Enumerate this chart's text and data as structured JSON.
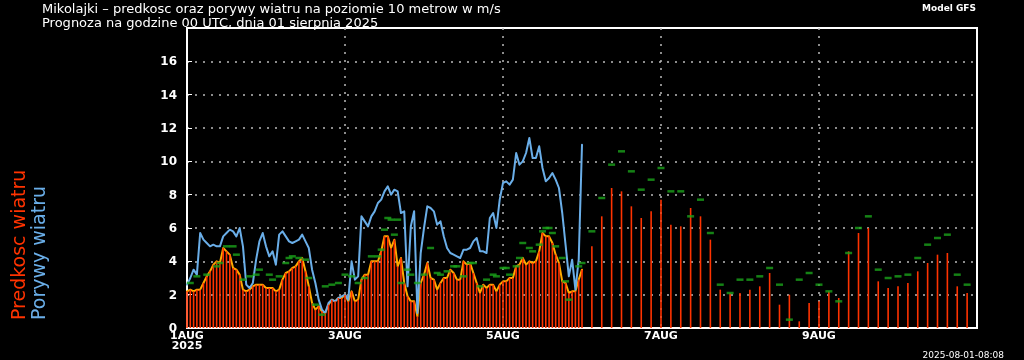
{
  "chart_data": {
    "type": "bar",
    "title": "Mikolajki – predkosc oraz porywy wiatru na poziomie 10 metrow w m/s",
    "subtitle": "Prognoza na godzine 00 UTC, dnia 01 sierpnia 2025",
    "annotations": [
      "Model GFS",
      "2025-08-01-08:08"
    ],
    "x": [
      "2025-08-01T00:00",
      "2025-08-01T01:00",
      "2025-08-01T02:00",
      "2025-08-01T03:00",
      "2025-08-01T04:00",
      "2025-08-01T05:00",
      "2025-08-01T06:00",
      "2025-08-01T07:00",
      "2025-08-01T08:00",
      "2025-08-01T09:00",
      "2025-08-01T10:00",
      "2025-08-01T11:00",
      "2025-08-01T12:00",
      "2025-08-01T13:00",
      "2025-08-01T14:00",
      "2025-08-01T15:00",
      "2025-08-01T16:00",
      "2025-08-01T17:00",
      "2025-08-01T18:00",
      "2025-08-01T19:00",
      "2025-08-01T20:00",
      "2025-08-01T21:00",
      "2025-08-01T22:00",
      "2025-08-01T23:00",
      "2025-08-02T00:00",
      "2025-08-02T01:00",
      "2025-08-02T02:00",
      "2025-08-02T03:00",
      "2025-08-02T04:00",
      "2025-08-02T05:00",
      "2025-08-02T06:00",
      "2025-08-02T07:00",
      "2025-08-02T08:00",
      "2025-08-02T09:00",
      "2025-08-02T10:00",
      "2025-08-02T11:00",
      "2025-08-02T12:00",
      "2025-08-02T13:00",
      "2025-08-02T14:00",
      "2025-08-02T15:00",
      "2025-08-02T16:00",
      "2025-08-02T17:00",
      "2025-08-02T18:00",
      "2025-08-02T19:00",
      "2025-08-02T20:00",
      "2025-08-02T21:00",
      "2025-08-02T22:00",
      "2025-08-02T23:00",
      "2025-08-03T00:00",
      "2025-08-03T01:00",
      "2025-08-03T02:00",
      "2025-08-03T03:00",
      "2025-08-03T04:00",
      "2025-08-03T05:00",
      "2025-08-03T06:00",
      "2025-08-03T07:00",
      "2025-08-03T08:00",
      "2025-08-03T09:00",
      "2025-08-03T10:00",
      "2025-08-03T11:00",
      "2025-08-03T12:00",
      "2025-08-03T13:00",
      "2025-08-03T14:00",
      "2025-08-03T15:00",
      "2025-08-03T16:00",
      "2025-08-03T17:00",
      "2025-08-03T18:00",
      "2025-08-03T19:00",
      "2025-08-03T20:00",
      "2025-08-03T21:00",
      "2025-08-03T22:00",
      "2025-08-03T23:00",
      "2025-08-04T00:00",
      "2025-08-04T01:00",
      "2025-08-04T02:00",
      "2025-08-04T03:00",
      "2025-08-04T04:00",
      "2025-08-04T05:00",
      "2025-08-04T06:00",
      "2025-08-04T07:00",
      "2025-08-04T08:00",
      "2025-08-04T09:00",
      "2025-08-04T10:00",
      "2025-08-04T11:00",
      "2025-08-04T12:00",
      "2025-08-04T13:00",
      "2025-08-04T14:00",
      "2025-08-04T15:00",
      "2025-08-04T16:00",
      "2025-08-04T17:00",
      "2025-08-04T18:00",
      "2025-08-04T19:00",
      "2025-08-04T20:00",
      "2025-08-04T21:00",
      "2025-08-04T22:00",
      "2025-08-04T23:00",
      "2025-08-05T00:00",
      "2025-08-05T01:00",
      "2025-08-05T02:00",
      "2025-08-05T03:00",
      "2025-08-05T04:00",
      "2025-08-05T05:00",
      "2025-08-05T06:00",
      "2025-08-05T07:00",
      "2025-08-05T08:00",
      "2025-08-05T09:00",
      "2025-08-05T10:00",
      "2025-08-05T11:00",
      "2025-08-05T12:00",
      "2025-08-05T13:00",
      "2025-08-05T14:00",
      "2025-08-05T15:00",
      "2025-08-05T16:00",
      "2025-08-05T17:00",
      "2025-08-05T18:00",
      "2025-08-05T19:00",
      "2025-08-05T20:00",
      "2025-08-05T21:00",
      "2025-08-05T22:00",
      "2025-08-05T23:00",
      "2025-08-06T00:00",
      "2025-08-06T03:00",
      "2025-08-06T06:00",
      "2025-08-06T09:00",
      "2025-08-06T12:00",
      "2025-08-06T15:00",
      "2025-08-06T18:00",
      "2025-08-06T21:00",
      "2025-08-07T00:00",
      "2025-08-07T03:00",
      "2025-08-07T06:00",
      "2025-08-07T09:00",
      "2025-08-07T12:00",
      "2025-08-07T15:00",
      "2025-08-07T18:00",
      "2025-08-07T21:00",
      "2025-08-08T00:00",
      "2025-08-08T03:00",
      "2025-08-08T06:00",
      "2025-08-08T09:00",
      "2025-08-08T12:00",
      "2025-08-08T15:00",
      "2025-08-08T18:00",
      "2025-08-08T21:00",
      "2025-08-09T00:00",
      "2025-08-09T03:00",
      "2025-08-09T06:00",
      "2025-08-09T09:00",
      "2025-08-09T12:00",
      "2025-08-09T15:00",
      "2025-08-09T18:00",
      "2025-08-09T21:00",
      "2025-08-10T00:00",
      "2025-08-10T03:00",
      "2025-08-10T06:00",
      "2025-08-10T09:00",
      "2025-08-10T12:00",
      "2025-08-10T15:00",
      "2025-08-10T18:00",
      "2025-08-10T21:00"
    ],
    "xlim": [
      "2025-08-01T00:00",
      "2025-08-11T00:00"
    ],
    "xticks": [
      {
        "value": "2025-08-01T00:00",
        "label": "1AUG\n2025"
      },
      {
        "value": "2025-08-03T00:00",
        "label": "3AUG"
      },
      {
        "value": "2025-08-05T00:00",
        "label": "5AUG"
      },
      {
        "value": "2025-08-07T00:00",
        "label": "7AUG"
      },
      {
        "value": "2025-08-09T00:00",
        "label": "9AUG"
      }
    ],
    "ylim": [
      0,
      18
    ],
    "yticks": [
      0,
      2,
      4,
      6,
      8,
      10,
      12,
      14,
      16
    ],
    "grid": true,
    "legend": "left",
    "series": [
      {
        "name": "Predkosc wiatru",
        "color": "#ff3300",
        "values": [
          2.2,
          2.3,
          2.2,
          2.3,
          2.3,
          2.7,
          3.1,
          3.4,
          3.8,
          4.0,
          3.9,
          4.8,
          4.6,
          4.4,
          3.6,
          3.5,
          3.2,
          2.3,
          2.2,
          2.3,
          2.5,
          2.6,
          2.6,
          2.6,
          2.4,
          2.4,
          2.4,
          2.2,
          2.3,
          2.9,
          3.3,
          3.4,
          3.6,
          3.7,
          4.0,
          4.2,
          3.4,
          2.5,
          1.5,
          1.1,
          1.3,
          1.0,
          0.9,
          1.4,
          1.7,
          1.6,
          1.8,
          1.8,
          2.0,
          1.6,
          2.2,
          1.6,
          1.7,
          2.9,
          3.2,
          3.2,
          4.0,
          4.0,
          4.0,
          4.6,
          5.5,
          5.5,
          4.8,
          5.3,
          3.7,
          4.2,
          2.7,
          1.9,
          1.6,
          1.6,
          0.7,
          2.7,
          3.2,
          3.9,
          3.0,
          2.9,
          2.3,
          2.7,
          3.0,
          3.0,
          3.5,
          3.3,
          2.9,
          2.9,
          4.0,
          3.8,
          3.9,
          3.3,
          2.7,
          2.1,
          2.6,
          2.4,
          2.6,
          2.6,
          2.2,
          2.6,
          2.8,
          2.8,
          3.0,
          3.0,
          3.7,
          3.8,
          4.2,
          3.8,
          4.0,
          3.9,
          4.0,
          4.6,
          5.7,
          5.5,
          5.5,
          5.1,
          4.4,
          3.9,
          2.8,
          2.7,
          2.1,
          2.2,
          2.2,
          2.9,
          3.5,
          4.9,
          6.7,
          8.4,
          8.2,
          7.3,
          6.6,
          7.0,
          7.7,
          6.2,
          6.1,
          7.2,
          6.7,
          5.3,
          2.3,
          2.1,
          2.1,
          2.3,
          2.5,
          3.3,
          1.4,
          2.0,
          0.4,
          1.5,
          1.6,
          2.2,
          1.8,
          4.6,
          5.7,
          6.0,
          2.8,
          2.4,
          2.5,
          2.7,
          3.4,
          3.9,
          4.4,
          4.5,
          2.5,
          2.1
        ]
      },
      {
        "type": "line",
        "color": "#ffaa00",
        "marker": "none",
        "values": [
          2.2,
          2.3,
          2.2,
          2.3,
          2.3,
          2.7,
          3.1,
          3.4,
          3.8,
          4.0,
          3.9,
          4.8,
          4.6,
          4.4,
          3.6,
          3.5,
          3.2,
          2.3,
          2.2,
          2.3,
          2.5,
          2.6,
          2.6,
          2.6,
          2.4,
          2.4,
          2.4,
          2.2,
          2.3,
          2.9,
          3.3,
          3.4,
          3.6,
          3.7,
          4.0,
          4.2,
          3.4,
          2.5,
          1.5,
          1.1,
          1.3,
          1.0,
          0.9,
          1.4,
          1.7,
          1.6,
          1.8,
          1.8,
          2.0,
          1.6,
          2.2,
          1.6,
          1.7,
          2.9,
          3.2,
          3.2,
          4.0,
          4.0,
          4.0,
          4.6,
          5.5,
          5.5,
          4.8,
          5.3,
          3.7,
          4.2,
          2.7,
          1.9,
          1.6,
          1.6,
          0.7,
          2.7,
          3.2,
          3.9,
          3.0,
          2.9,
          2.3,
          2.7,
          3.0,
          3.0,
          3.5,
          3.3,
          2.9,
          2.9,
          4.0,
          3.8,
          3.9,
          3.3,
          2.7,
          2.1,
          2.6,
          2.4,
          2.6,
          2.6,
          2.2,
          2.6,
          2.8,
          2.8,
          3.0,
          3.0,
          3.7,
          3.8,
          4.2,
          3.8,
          4.0,
          3.9,
          4.0,
          4.6,
          5.7,
          5.5,
          5.5,
          5.1,
          4.4,
          3.9,
          2.8,
          2.7,
          2.1,
          2.2,
          2.2,
          2.9,
          3.5,
          null,
          null,
          null,
          null,
          null,
          null,
          null,
          null,
          null,
          null,
          null,
          null,
          null,
          null,
          null,
          null,
          null,
          null,
          null,
          null,
          null,
          null,
          null,
          null,
          null,
          null,
          null,
          null,
          null,
          null,
          null,
          null,
          null,
          null,
          null,
          null,
          null,
          null,
          null
        ]
      },
      {
        "name": "Porywy wiatru",
        "type": "line",
        "color": "#6aaee8",
        "marker": "none",
        "values": [
          2.6,
          3.0,
          3.5,
          3.2,
          5.7,
          5.3,
          5.1,
          4.9,
          5.0,
          4.9,
          4.9,
          5.5,
          5.7,
          5.9,
          5.8,
          5.5,
          6.0,
          4.9,
          2.6,
          2.4,
          2.7,
          4.1,
          5.2,
          5.7,
          4.9,
          4.3,
          4.6,
          3.8,
          5.6,
          5.8,
          5.5,
          5.2,
          5.1,
          5.2,
          5.3,
          5.6,
          5.2,
          4.8,
          3.5,
          2.7,
          1.7,
          1.1,
          0.9,
          1.5,
          1.7,
          1.6,
          1.8,
          1.9,
          2.0,
          1.7,
          4.0,
          2.9,
          3.1,
          6.7,
          6.4,
          6.1,
          6.7,
          7.0,
          7.5,
          7.7,
          8.2,
          8.5,
          8.0,
          8.3,
          8.2,
          6.9,
          7.0,
          2.5,
          6.1,
          7.0,
          0.9,
          4.5,
          6.0,
          7.3,
          7.2,
          7.0,
          6.2,
          6.4,
          5.5,
          4.8,
          4.5,
          4.4,
          4.3,
          4.2,
          4.7,
          4.7,
          4.8,
          5.2,
          5.4,
          4.6,
          4.6,
          4.5,
          6.6,
          6.9,
          6.0,
          7.7,
          8.7,
          8.8,
          8.6,
          8.9,
          10.5,
          9.8,
          10.0,
          10.5,
          11.4,
          10.2,
          10.2,
          10.9,
          9.6,
          8.8,
          9.0,
          9.3,
          8.9,
          8.4,
          6.9,
          5.0,
          3.1,
          4.1,
          2.3,
          4.1,
          11.0,
          null,
          null,
          null,
          null,
          null,
          null,
          null,
          null,
          null,
          null,
          null,
          null,
          null,
          null,
          null,
          null,
          null,
          null,
          null,
          null,
          null,
          null,
          null,
          null,
          null,
          null,
          null,
          null,
          null,
          null,
          null,
          null,
          null,
          null,
          null,
          null,
          null,
          null,
          null
        ]
      },
      {
        "type": "scatter",
        "color": "#1aa31a",
        "marker": "square",
        "values": [
          null,
          2.7,
          null,
          3.1,
          null,
          null,
          3.2,
          null,
          null,
          3.7,
          3.9,
          null,
          4.9,
          null,
          4.9,
          4.4,
          null,
          2.9,
          null,
          3.1,
          null,
          3.2,
          3.5,
          null,
          null,
          3.2,
          2.9,
          null,
          3.1,
          null,
          3.9,
          4.2,
          4.3,
          null,
          4.2,
          null,
          4.1,
          3.0,
          null,
          1.4,
          null,
          0.8,
          2.5,
          null,
          2.6,
          null,
          2.7,
          null,
          3.2,
          null,
          3.1,
          null,
          2.7,
          null,
          3.0,
          null,
          4.3,
          null,
          4.3,
          4.7,
          5.9,
          6.6,
          6.5,
          5.6,
          6.5,
          2.7,
          null,
          3.5,
          3.2,
          null,
          2.7,
          null,
          3.2,
          null,
          4.8,
          null,
          3.3,
          3.2,
          null,
          3.4,
          null,
          3.7,
          3.7,
          null,
          3.1,
          null,
          3.9,
          3.9,
          null,
          2.5,
          null,
          2.9,
          null,
          3.2,
          3.1,
          null,
          3.6,
          3.6,
          3.2,
          null,
          3.7,
          4.2,
          5.1,
          null,
          4.8,
          4.6,
          null,
          5.0,
          5.8,
          6.0,
          6.0,
          5.7,
          4.9,
          null,
          4.2,
          2.8,
          1.7,
          null,
          null,
          3.7,
          3.9,
          5.8,
          7.8,
          9.8,
          10.6,
          9.4,
          8.3,
          8.9,
          9.6,
          8.2,
          8.2,
          6.7,
          7.7,
          5.7,
          2.6,
          2.1,
          2.9,
          2.9,
          3.1,
          3.6,
          2.6,
          0.5,
          2.9,
          3.3,
          2.6,
          2.2,
          1.6,
          4.5,
          6.0,
          6.7,
          3.5,
          3.0,
          3.1,
          3.2,
          4.2,
          5.0,
          5.4,
          5.6,
          3.2,
          2.6
        ]
      }
    ]
  }
}
